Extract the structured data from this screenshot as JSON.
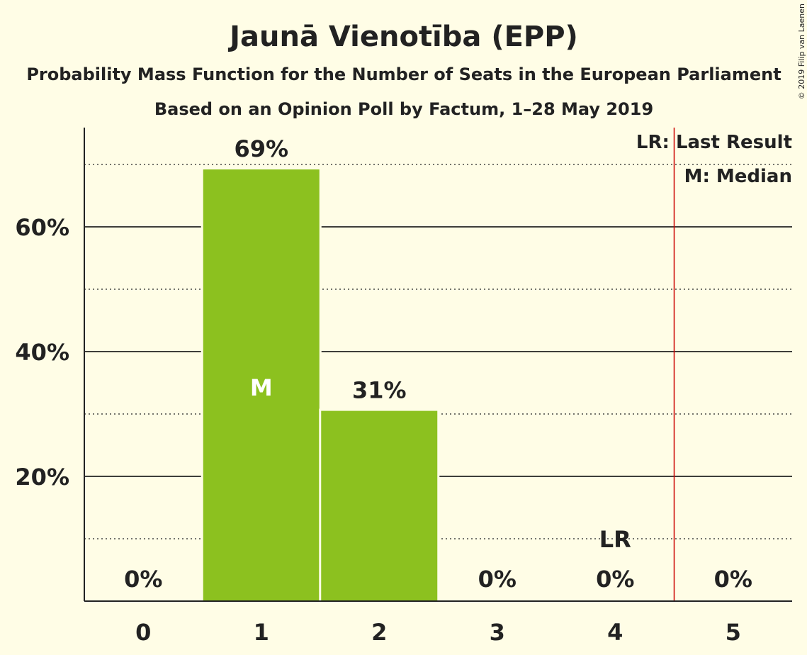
{
  "chart_data": {
    "type": "bar",
    "title": "Jaunā Vienotība (EPP)",
    "subtitle": "Probability Mass Function for the Number of Seats in the European Parliament",
    "subtitle2": "Based on an Opinion Poll by Factum, 1–28 May 2019",
    "copyright": "© 2019 Filip van Laenen",
    "categories": [
      "0",
      "1",
      "2",
      "3",
      "4",
      "5"
    ],
    "values": [
      0,
      69.2,
      30.5,
      0,
      0,
      0
    ],
    "value_labels": [
      "0%",
      "69%",
      "31%",
      "0%",
      "0%",
      "0%"
    ],
    "ylim": [
      0,
      75
    ],
    "yticks": [
      {
        "value": 20,
        "label": "20%"
      },
      {
        "value": 40,
        "label": "40%"
      },
      {
        "value": 60,
        "label": "60%"
      }
    ],
    "minor_gridlines": [
      10,
      30,
      50,
      70
    ],
    "median": {
      "seats": 1,
      "label": "M"
    },
    "last_result": {
      "seats": 4,
      "label": "LR"
    },
    "majority_line_x": 4.5,
    "legend": {
      "placement": "top-right",
      "last_result": "LR: Last Result",
      "median": "M: Median"
    },
    "colors": {
      "bar": "#8cc11f",
      "background": "#fffde6",
      "last_result_line": "#cc0000",
      "text": "#222222"
    }
  }
}
